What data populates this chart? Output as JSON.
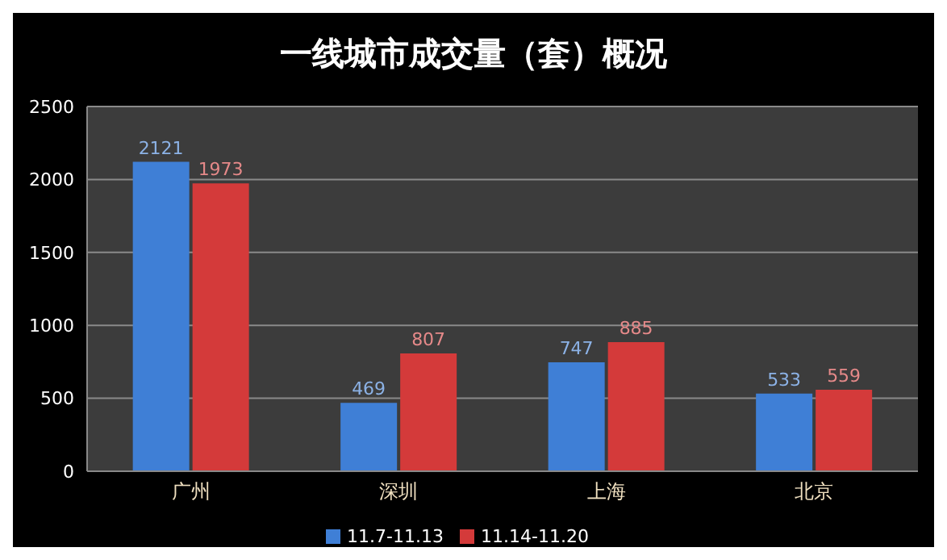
{
  "chart_data": {
    "type": "bar",
    "title": "一线城市成交量（套）概况",
    "categories": [
      "广州",
      "深圳",
      "上海",
      "北京"
    ],
    "series": [
      {
        "name": "11.7-11.13",
        "color": "#3f7fd6",
        "values": [
          2121,
          469,
          747,
          533
        ]
      },
      {
        "name": "11.14-11.20",
        "color": "#d43a3a",
        "values": [
          1973,
          807,
          885,
          559
        ]
      }
    ],
    "ylim": [
      0,
      2500
    ],
    "yticks": [
      0,
      500,
      1000,
      1500,
      2000,
      2500
    ],
    "grid": "y",
    "legend": "bottom",
    "data_labels": true
  }
}
